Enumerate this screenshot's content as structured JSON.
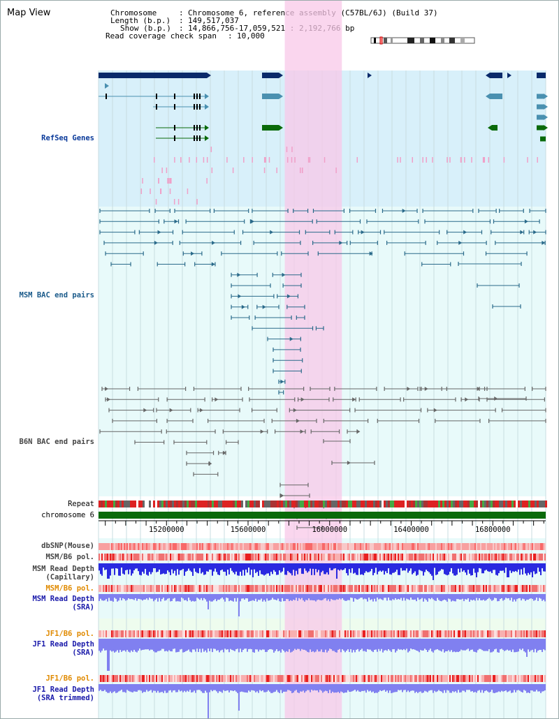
{
  "app": {
    "title": "Map View"
  },
  "info": {
    "chromosome_key": "Chromosome",
    "chromosome_value": "Chromosome 6, reference assembly (C57BL/6J) (Build 37)",
    "length_key": "Length (b.p.)",
    "length_value": "149,517,037",
    "show_key": "Show (b.p.)",
    "show_value": "14,866,756-17,059,521 : 2,192,766 bp",
    "coverage_key": "Read coverage check span",
    "coverage_value": "10,000"
  },
  "tracks": {
    "refseq": "RefSeq Genes",
    "msm_bac": "MSM BAC end pairs",
    "b6n_bac": "B6N BAC end pairs",
    "repeat": "Repeat",
    "chromosome": "chromosome 6",
    "dbsnp": "dbSNP(Mouse)",
    "msm_b6_pol_1": "MSM/B6 pol.",
    "msm_depth_cap_1": "MSM Read Depth",
    "msm_depth_cap_2": "(Capillary)",
    "msm_b6_pol_2": "MSM/B6 pol.",
    "msm_depth_sra_1": "MSM Read Depth",
    "msm_depth_sra_2": "(SRA)",
    "jf1_b6_pol_1": "JF1/B6 pol.",
    "jf1_depth_sra_1": "JF1 Read Depth",
    "jf1_depth_sra_2": "(SRA)",
    "jf1_b6_pol_2": "JF1/B6 pol.",
    "jf1_depth_trim_1": "JF1 Read Depth",
    "jf1_depth_trim_2": "(SRA trimmed)"
  },
  "axis": {
    "ticks": [
      "15200000",
      "15600000",
      "16000000",
      "16400000",
      "16800000"
    ],
    "tick_values": [
      15200000,
      15600000,
      16000000,
      16400000,
      16800000
    ],
    "start": 14866756,
    "end": 17059521
  },
  "highlight": {
    "start": 15780000,
    "end": 16060000
  },
  "colors": {
    "refseq_bg": "#d8f0fa",
    "bac_bg": "#e8fafa",
    "gene_dark": "#0a2a6a",
    "gene_mid": "#4a90b0",
    "gene_green": "#0a6a0a",
    "highlight": "#f8c8e8",
    "bac_msm": "#2a6a8a",
    "bac_b6n": "#666666",
    "chromosome_bar": "#0a6a0a",
    "depth_blue": "#2a2ae0",
    "depth_light": "#8080f0"
  },
  "ideogram": {
    "icon": "chromosome-ideogram-icon"
  }
}
